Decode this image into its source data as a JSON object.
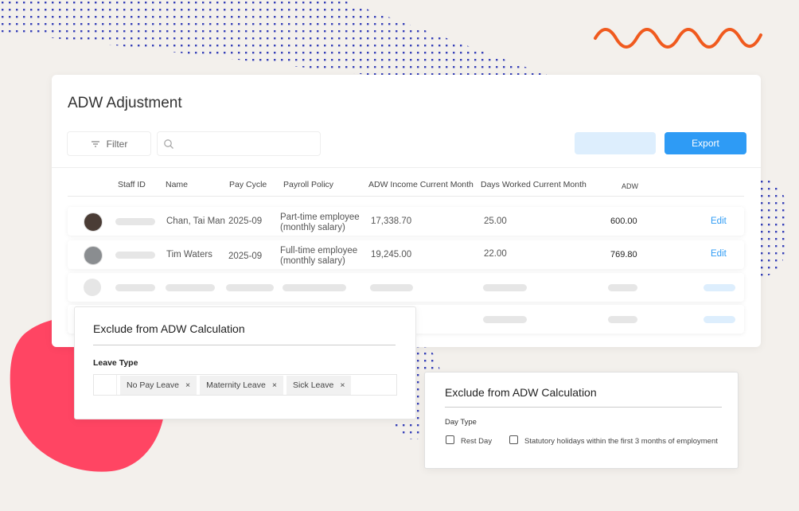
{
  "header": {
    "title": "ADW Adjustment"
  },
  "toolbar": {
    "filter": "Filter",
    "export": "Export"
  },
  "table": {
    "columns": [
      "Staff ID",
      "Name",
      "Pay Cycle",
      "Payroll Policy",
      "ADW Income Current Month",
      "Days Worked Current Month",
      "ADW"
    ],
    "rows": [
      [
        "Chan, Tai Man",
        "2025-09",
        "Part-time employee (monthly salary)",
        "17,338.70",
        "25.00",
        "600.00",
        "Edit"
      ],
      [
        "Tim Waters",
        "2025-09",
        "Full-time employee (monthly salary)",
        "19,245.00",
        "22.00",
        "769.80",
        "Edit"
      ]
    ]
  },
  "leave_panel": {
    "title": "Exclude from ADW Calculation",
    "label": "Leave Type",
    "tags": [
      "No Pay Leave",
      "Maternity Leave",
      "Sick Leave"
    ]
  },
  "day_panel": {
    "title": "Exclude from ADW Calculation",
    "label": "Day Type",
    "options": [
      "Rest Day",
      "Statutory holidays within the first 3 months of employment"
    ]
  }
}
